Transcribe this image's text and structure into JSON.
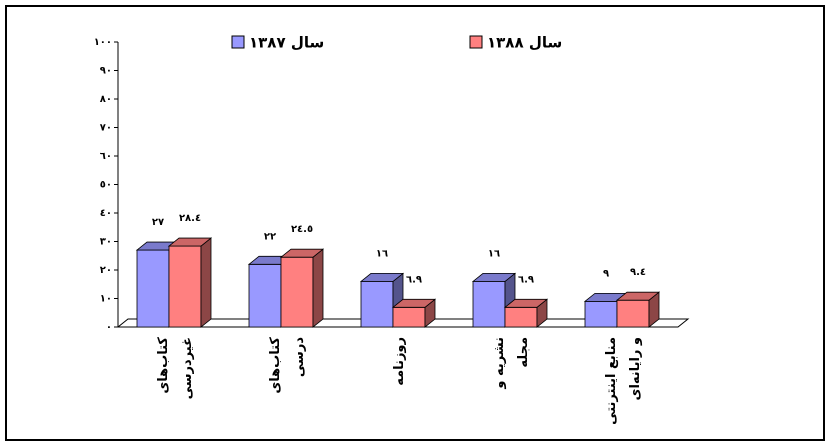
{
  "chart_data": {
    "type": "bar3d",
    "categories": [
      "کتاب‌های\nغیردرسی",
      "کتاب‌های\nدرسی",
      "روزنامه",
      "نشریه و\nمجله",
      "منابع اینترنتی\nو رایانه‌ای"
    ],
    "series": [
      {
        "name": "سال ١٣٨٧",
        "color": "#9999ff",
        "values": [
          27,
          22,
          16,
          16,
          9
        ],
        "value_labels": [
          "٢٧",
          "٢٢",
          "١٦",
          "١٦",
          "٩"
        ]
      },
      {
        "name": "سال ١٣٨٨",
        "color": "#ff8080",
        "values": [
          28.4,
          24.5,
          6.9,
          6.9,
          9.4
        ],
        "value_labels": [
          "٢٨.٤",
          "٢٤.٥",
          "٦.٩",
          "٦.٩",
          "٩.٤"
        ]
      }
    ],
    "ylim": [
      0,
      100
    ],
    "yticks": [
      {
        "value": 0,
        "label": "٠"
      },
      {
        "value": 10,
        "label": "١٠"
      },
      {
        "value": 20,
        "label": "٢٠"
      },
      {
        "value": 30,
        "label": "٣٠"
      },
      {
        "value": 40,
        "label": "٤٠"
      },
      {
        "value": 50,
        "label": "٥٠"
      },
      {
        "value": 60,
        "label": "٦٠"
      },
      {
        "value": 70,
        "label": "٧٠"
      },
      {
        "value": 80,
        "label": "٨٠"
      },
      {
        "value": 90,
        "label": "٩٠"
      },
      {
        "value": 100,
        "label": "١٠٠"
      }
    ]
  }
}
